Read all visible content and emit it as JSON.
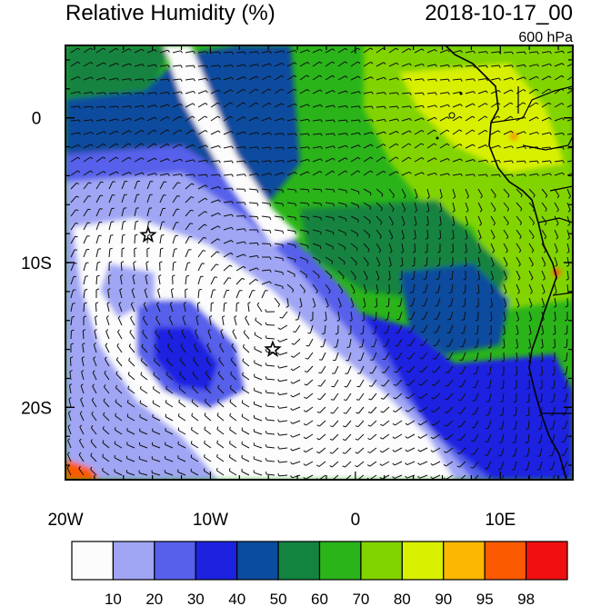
{
  "header": {
    "title": "Relative Humidity (%)",
    "datetime": "2018-10-17_00",
    "level": "600 hPa"
  },
  "map": {
    "lon_range": [
      -20,
      15
    ],
    "lat_range": [
      -25,
      5
    ],
    "lon_ticks": [
      {
        "value": -20,
        "label": "20W"
      },
      {
        "value": -10,
        "label": "10W"
      },
      {
        "value": 0,
        "label": "0"
      },
      {
        "value": 10,
        "label": "10E"
      }
    ],
    "lat_ticks": [
      {
        "value": 0,
        "label": "0"
      },
      {
        "value": -10,
        "label": "10S"
      },
      {
        "value": -20,
        "label": "20S"
      }
    ],
    "markers": [
      {
        "name": "star-marker",
        "lon": -14.3,
        "lat": -8.1
      },
      {
        "name": "star-marker",
        "lon": -5.7,
        "lat": -16.0
      }
    ],
    "overlays": [
      "wind-barbs",
      "coastline",
      "country-borders"
    ]
  },
  "colorbar": {
    "labels": [
      "10",
      "20",
      "30",
      "40",
      "50",
      "60",
      "70",
      "80",
      "90",
      "95",
      "98"
    ],
    "colors": [
      "#fcfcfc",
      "#a0a6f4",
      "#5660ea",
      "#1c22e0",
      "#0a4c9e",
      "#128440",
      "#2ab41a",
      "#82d400",
      "#d8f000",
      "#fcb800",
      "#fc5a00",
      "#f01010"
    ]
  }
}
